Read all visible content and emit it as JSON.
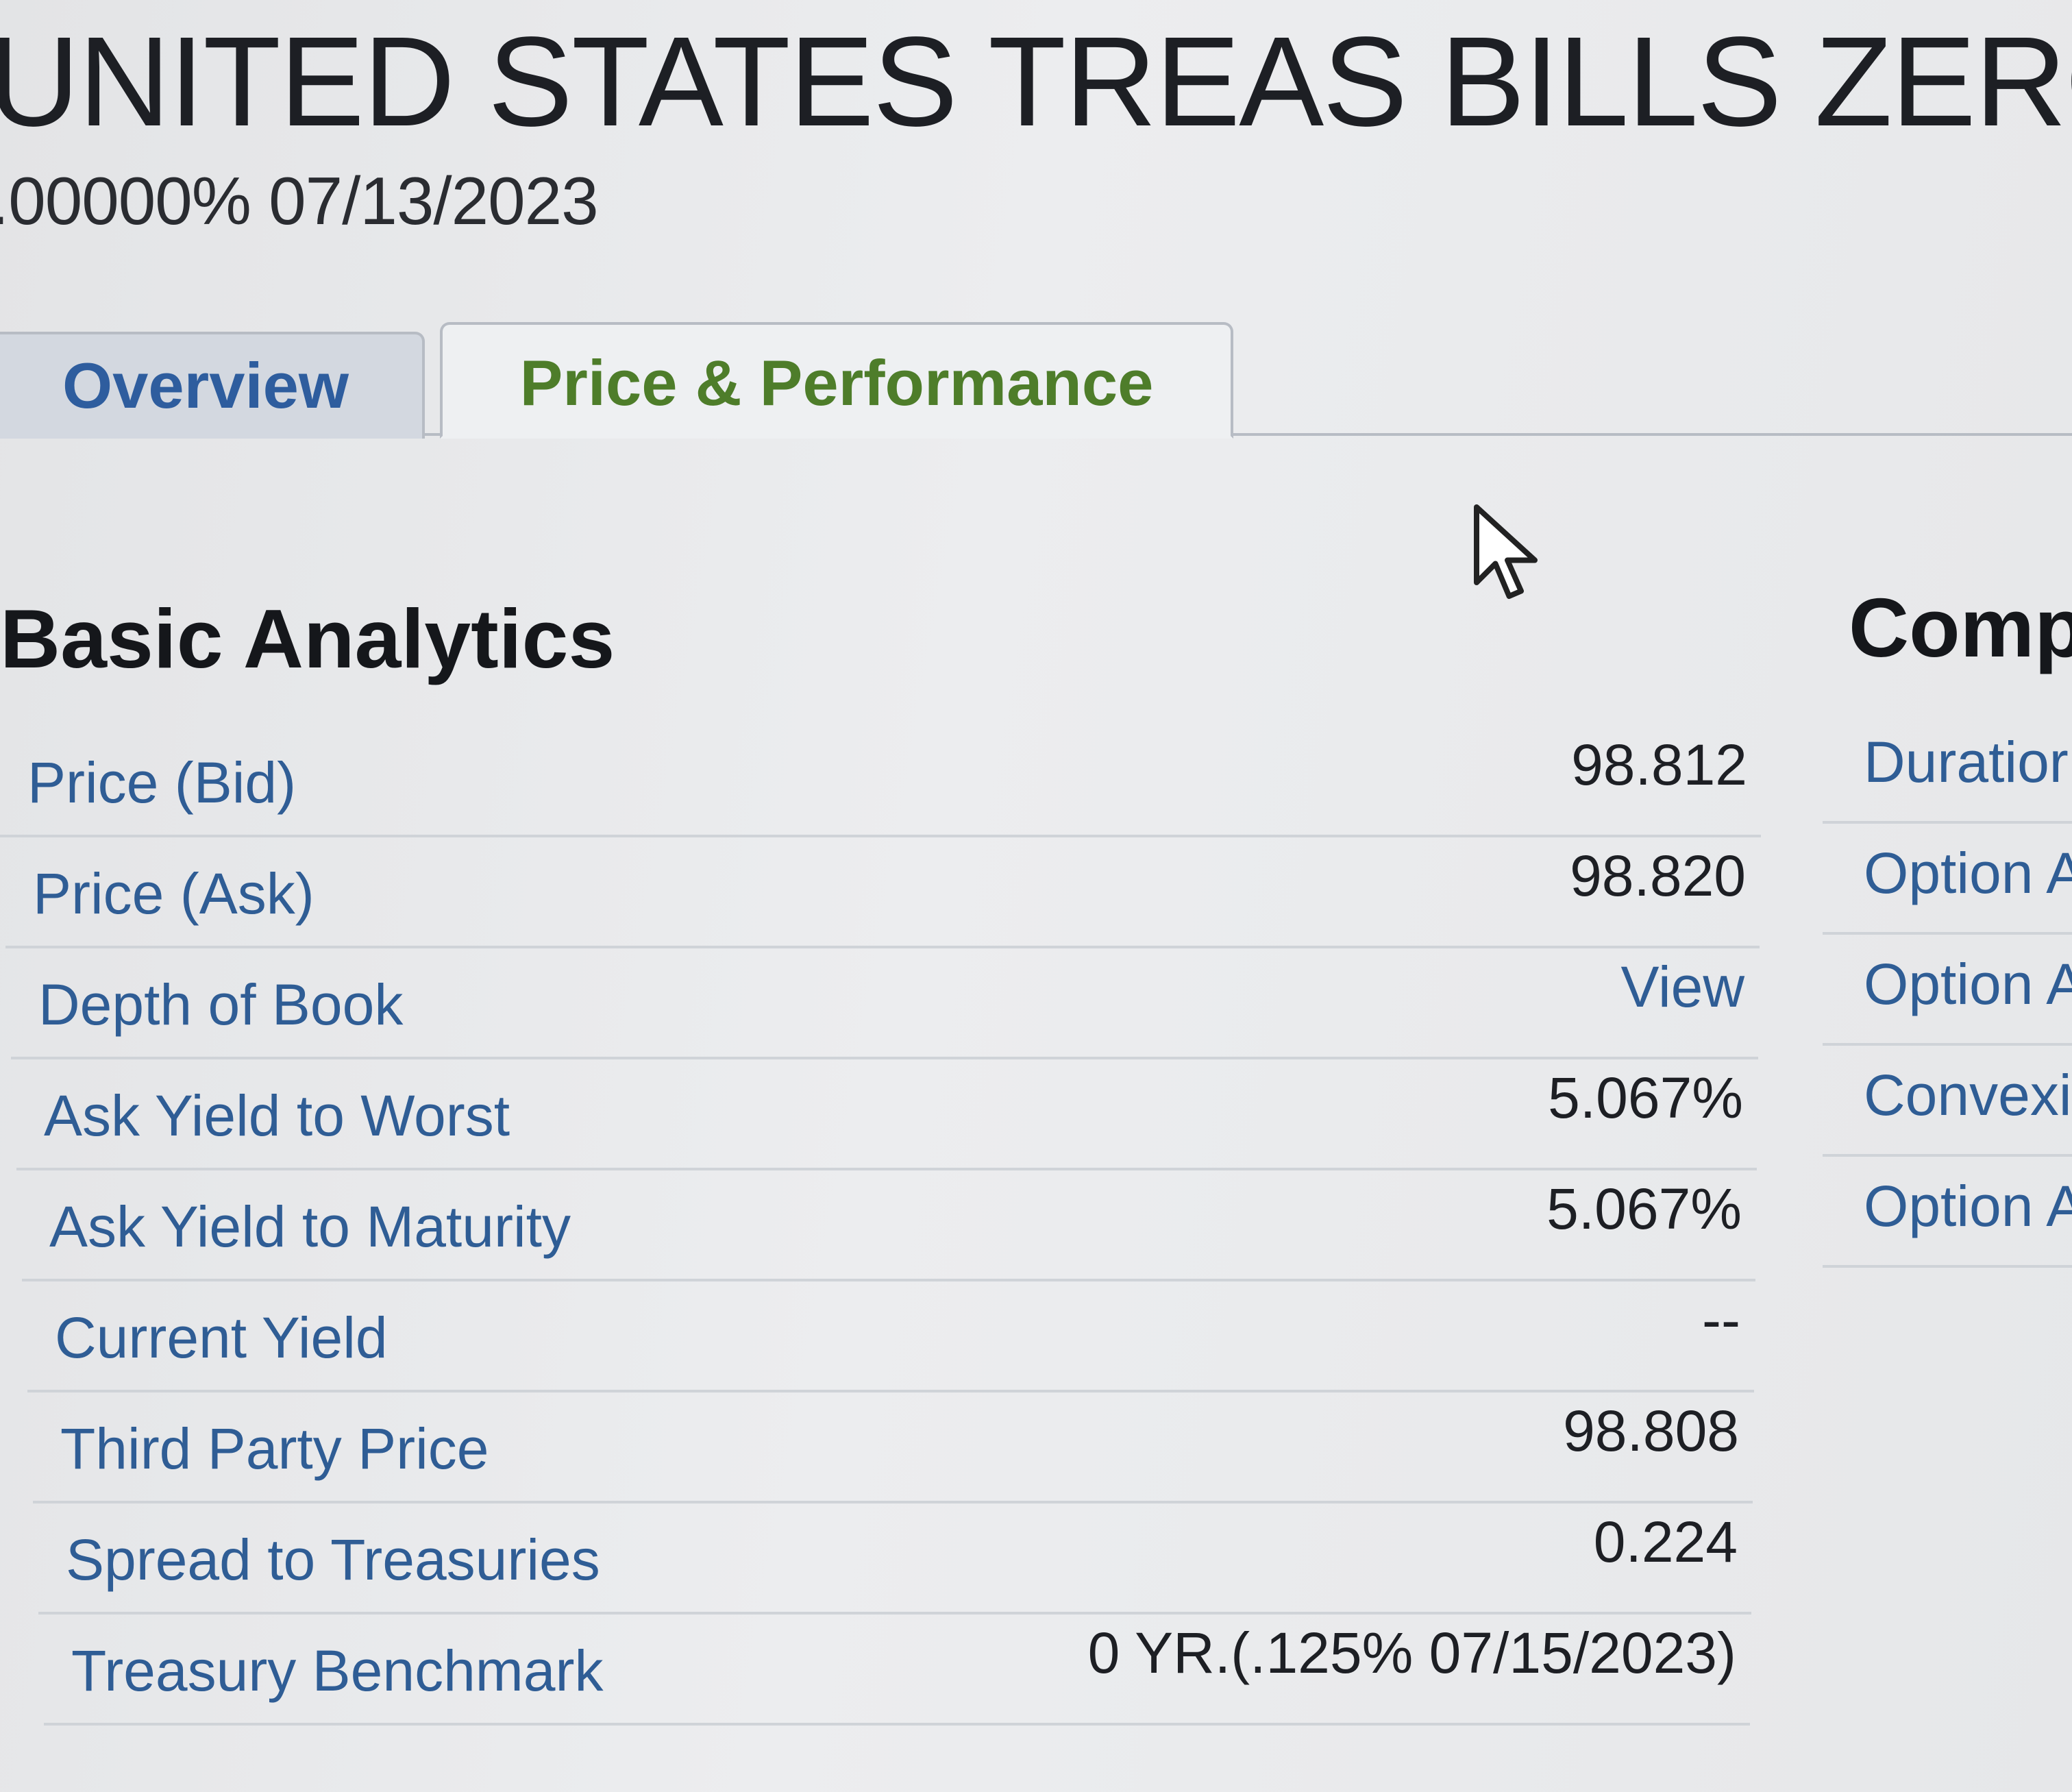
{
  "header": {
    "title": "UNITED STATES TREAS BILLS ZERO",
    "subtitle": ".00000% 07/13/2023"
  },
  "tabs": [
    {
      "label": "Overview",
      "active": false
    },
    {
      "label": "Price & Performance",
      "active": true
    }
  ],
  "basic_analytics": {
    "title": "Basic Analytics",
    "rows": [
      {
        "label": "Price (Bid)",
        "value": "98.812"
      },
      {
        "label": "Price (Ask)",
        "value": "98.820"
      },
      {
        "label": "Depth of Book",
        "value": "View"
      },
      {
        "label": "Ask Yield to Worst",
        "value": "5.067%"
      },
      {
        "label": "Ask Yield to Maturity",
        "value": "5.067%"
      },
      {
        "label": "Current Yield",
        "value": "--"
      },
      {
        "label": "Third Party Price",
        "value": "98.808"
      },
      {
        "label": "Spread to Treasuries",
        "value": "0.224"
      },
      {
        "label": "Treasury Benchmark",
        "value": "0 YR.(.125% 07/15/2023)"
      }
    ]
  },
  "comp_panel": {
    "title": "Comp",
    "rows": [
      {
        "label": "Duratior"
      },
      {
        "label": "Option A"
      },
      {
        "label": "Option A"
      },
      {
        "label": "Convexi"
      },
      {
        "label": "Option A"
      }
    ]
  },
  "colors": {
    "link_blue": "#2f5d95",
    "active_tab_green": "#4e7d2a",
    "text_dark": "#1d1f24",
    "divider": "#cfd3d8"
  },
  "icons": {
    "cursor": "mouse-pointer-icon"
  }
}
